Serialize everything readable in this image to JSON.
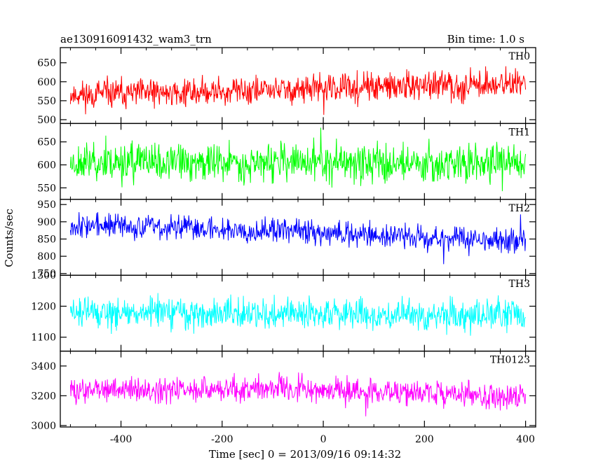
{
  "header": {
    "left": "ae130916091432_wam3_trn",
    "right": "Bin time: 1.0 s"
  },
  "chart_data": {
    "type": "line",
    "xlabel": "Time [sec] 0 = 2013/09/16 09:14:32",
    "ylabel": "Counts/sec",
    "xlim": [
      -520,
      420
    ],
    "xticks": [
      -400,
      -200,
      0,
      200,
      400
    ],
    "panels": [
      {
        "name": "TH0",
        "color": "#ff0000",
        "ylim": [
          490,
          690
        ],
        "yticks": [
          500,
          550,
          600,
          650
        ],
        "trend": [
          {
            "x": -500,
            "y": 565
          },
          {
            "x": -100,
            "y": 578
          },
          {
            "x": 400,
            "y": 595
          }
        ],
        "noise": 28,
        "seed": 11
      },
      {
        "name": "TH1",
        "color": "#00ff00",
        "ylim": [
          525,
          690
        ],
        "yticks": [
          550,
          600,
          650
        ],
        "trend": [
          {
            "x": -500,
            "y": 606
          },
          {
            "x": 400,
            "y": 604
          }
        ],
        "noise": 30,
        "seed": 23
      },
      {
        "name": "TH2",
        "color": "#0000ff",
        "ylim": [
          745,
          965
        ],
        "yticks": [
          750,
          800,
          850,
          900,
          950
        ],
        "trend": [
          {
            "x": -500,
            "y": 892
          },
          {
            "x": -100,
            "y": 875
          },
          {
            "x": 400,
            "y": 842
          }
        ],
        "noise": 26,
        "seed": 37
      },
      {
        "name": "TH3",
        "color": "#00ffff",
        "ylim": [
          1055,
          1300
        ],
        "yticks": [
          1100,
          1200,
          1300
        ],
        "trend": [
          {
            "x": -500,
            "y": 1180
          },
          {
            "x": 400,
            "y": 1168
          }
        ],
        "noise": 36,
        "seed": 51
      },
      {
        "name": "TH0123",
        "color": "#ff00ff",
        "ylim": [
          2990,
          3500
        ],
        "yticks": [
          3000,
          3200,
          3400
        ],
        "trend": [
          {
            "x": -500,
            "y": 3235
          },
          {
            "x": -100,
            "y": 3250
          },
          {
            "x": 400,
            "y": 3190
          }
        ],
        "noise": 62,
        "seed": 73
      }
    ],
    "bin_time_s": 1.0
  }
}
